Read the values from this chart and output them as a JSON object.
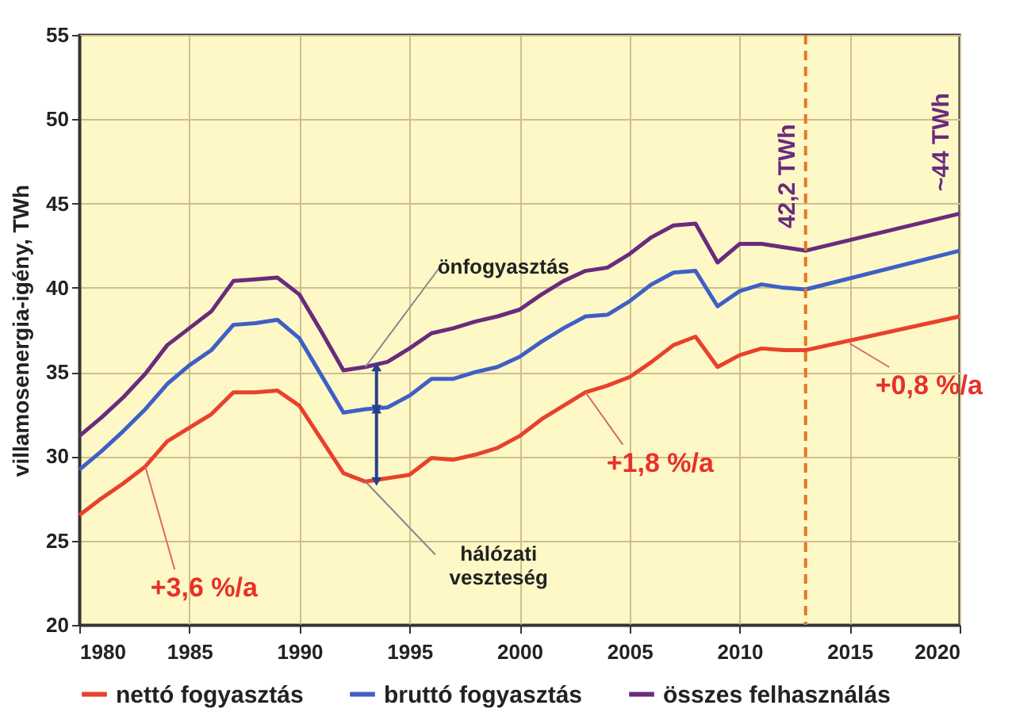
{
  "chart_data": {
    "type": "line",
    "ylabel": "villamosenergia-igény, TWh",
    "x": [
      1980,
      1981,
      1982,
      1983,
      1984,
      1985,
      1986,
      1987,
      1988,
      1989,
      1990,
      1991,
      1992,
      1993,
      1994,
      1995,
      1996,
      1997,
      1998,
      1999,
      2000,
      2001,
      2002,
      2003,
      2004,
      2005,
      2006,
      2007,
      2008,
      2009,
      2010,
      2011,
      2012,
      2013,
      2020
    ],
    "series": [
      {
        "name": "nettó fogyasztás",
        "color": "#e8412c",
        "values": [
          26.5,
          27.5,
          28.4,
          29.4,
          30.9,
          31.7,
          32.5,
          33.8,
          33.8,
          33.9,
          33.0,
          31.0,
          29.0,
          28.5,
          28.7,
          28.9,
          29.9,
          29.8,
          30.1,
          30.5,
          31.2,
          32.2,
          33.0,
          33.8,
          34.2,
          34.7,
          35.6,
          36.6,
          37.1,
          35.3,
          36.0,
          36.4,
          36.3,
          36.3,
          38.3
        ]
      },
      {
        "name": "bruttó fogyasztás",
        "color": "#3f5fc6",
        "values": [
          29.2,
          30.3,
          31.5,
          32.8,
          34.3,
          35.4,
          36.3,
          37.8,
          37.9,
          38.1,
          37.0,
          34.8,
          32.6,
          32.8,
          32.9,
          33.6,
          34.6,
          34.6,
          35.0,
          35.3,
          35.9,
          36.8,
          37.6,
          38.3,
          38.4,
          39.2,
          40.2,
          40.9,
          41.0,
          38.9,
          39.8,
          40.2,
          40.0,
          39.9,
          42.2
        ]
      },
      {
        "name": "összes felhasználás",
        "color": "#6a2b7c",
        "values": [
          31.2,
          32.3,
          33.5,
          34.9,
          36.6,
          37.6,
          38.6,
          40.4,
          40.5,
          40.6,
          39.6,
          37.4,
          35.1,
          35.3,
          35.6,
          36.4,
          37.3,
          37.6,
          38.0,
          38.3,
          38.7,
          39.6,
          40.4,
          41.0,
          41.2,
          42.0,
          43.0,
          43.7,
          43.8,
          41.5,
          42.6,
          42.6,
          42.4,
          42.2,
          44.4
        ]
      }
    ],
    "xlim": [
      1980,
      2020
    ],
    "xticks": [
      1980,
      1985,
      1990,
      1995,
      2000,
      2005,
      2010,
      2015,
      2020
    ],
    "ylim": [
      20,
      55
    ],
    "yticks": [
      20,
      25,
      30,
      35,
      40,
      45,
      50,
      55
    ],
    "grid": true,
    "legend": "bottom",
    "line_style": "solid",
    "ref_lines": [
      {
        "axis": "x",
        "value": 2013,
        "color": "#e87722",
        "line_style": "dashed"
      }
    ],
    "annotations": [
      {
        "text": "42,2 TWh",
        "x": 2013,
        "y": 42.2
      },
      {
        "text": "~44 TWh",
        "x": 2020,
        "y": 44.4
      },
      {
        "text": "+3,6 %/a",
        "x": 1983,
        "y": 29.4
      },
      {
        "text": "+1,8 %/a",
        "x": 2003,
        "y": 33.8
      },
      {
        "text": "+0,8 %/a",
        "x": 2015,
        "y": 36.7
      },
      {
        "text": "önfogyasztás",
        "x": 1993,
        "y": 35.3
      },
      {
        "text": "hálózati veszteség",
        "x": 1993,
        "y": 28.5
      }
    ]
  }
}
